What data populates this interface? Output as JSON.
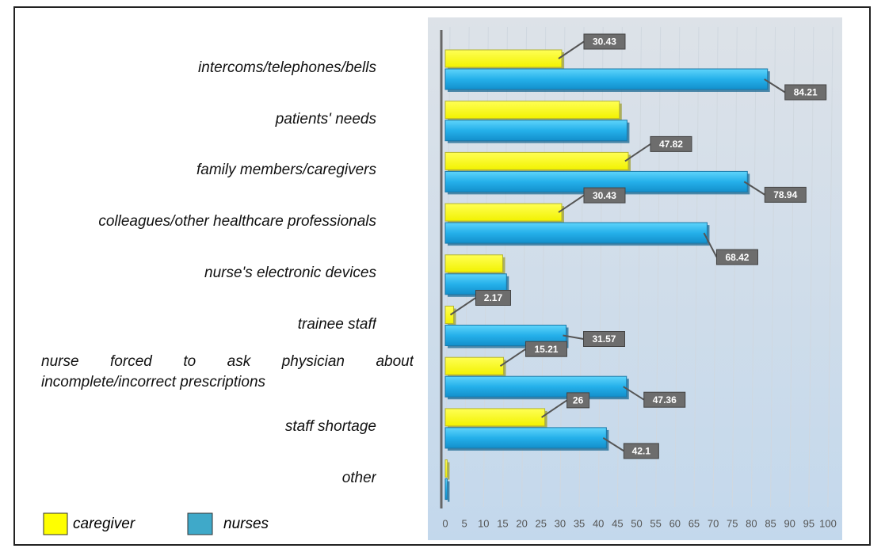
{
  "chart_data": {
    "type": "bar",
    "orientation": "horizontal",
    "categories": [
      "intercoms/telephones/bells",
      "patients' needs",
      "family members/caregivers",
      "colleagues/other healthcare professionals",
      "nurse's electronic devices",
      "trainee staff",
      "nurse forced to ask physician about incomplete/incorrect prescriptions",
      "staff shortage",
      "other"
    ],
    "series": [
      {
        "name": "caregiver",
        "color": "#ffff00",
        "values": [
          30.43,
          45.5,
          47.82,
          30.43,
          15,
          2.17,
          15.21,
          26,
          0.5
        ],
        "value_labels": [
          "30.43",
          null,
          "47.82",
          "30.43",
          null,
          "2.17",
          "15.21",
          "26",
          null
        ]
      },
      {
        "name": "nurses",
        "color": "#25b0ea",
        "values": [
          84.21,
          47.5,
          78.94,
          68.42,
          16,
          31.57,
          47.36,
          42.1,
          0.5
        ],
        "value_labels": [
          "84.21",
          null,
          "78.94",
          "68.42",
          null,
          "31.57",
          "47.36",
          "42.1",
          null
        ]
      }
    ],
    "xlim": [
      0,
      100
    ],
    "xticks": [
      0,
      5,
      10,
      15,
      20,
      25,
      30,
      35,
      40,
      45,
      50,
      55,
      60,
      65,
      70,
      75,
      80,
      85,
      90,
      95,
      100
    ],
    "grid": true,
    "legend": "bottom-left"
  }
}
